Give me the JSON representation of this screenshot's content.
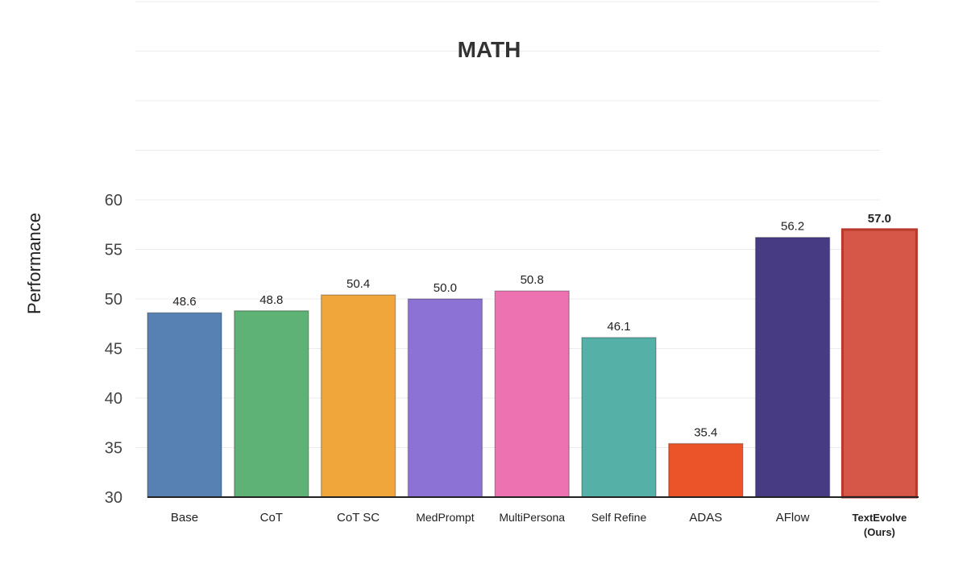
{
  "chart_data": {
    "type": "bar",
    "title": "MATH",
    "xlabel": "",
    "ylabel": "Performance",
    "ylim": [
      30,
      60
    ],
    "yticks": [
      30,
      35,
      40,
      45,
      50,
      55,
      60
    ],
    "grid": true,
    "legend": "none",
    "categories": [
      "Base",
      "CoT",
      "CoT SC",
      "MedPrompt",
      "MultiPersona",
      "Self Refine",
      "ADAS",
      "AFlow",
      "TextEvolve\n(Ours)"
    ],
    "values": [
      48.6,
      48.8,
      50.4,
      50.0,
      50.8,
      46.1,
      35.4,
      56.2,
      57.0
    ],
    "value_labels": [
      "48.6",
      "48.8",
      "50.4",
      "50.0",
      "50.8",
      "46.1",
      "35.4",
      "56.2",
      "57.0"
    ],
    "colors": [
      "#5780b3",
      "#5fb275",
      "#f0a63b",
      "#8d72d6",
      "#ec72b1",
      "#55b0a8",
      "#ea5428",
      "#473c84",
      "#d65747"
    ],
    "highlight_index": 8
  }
}
